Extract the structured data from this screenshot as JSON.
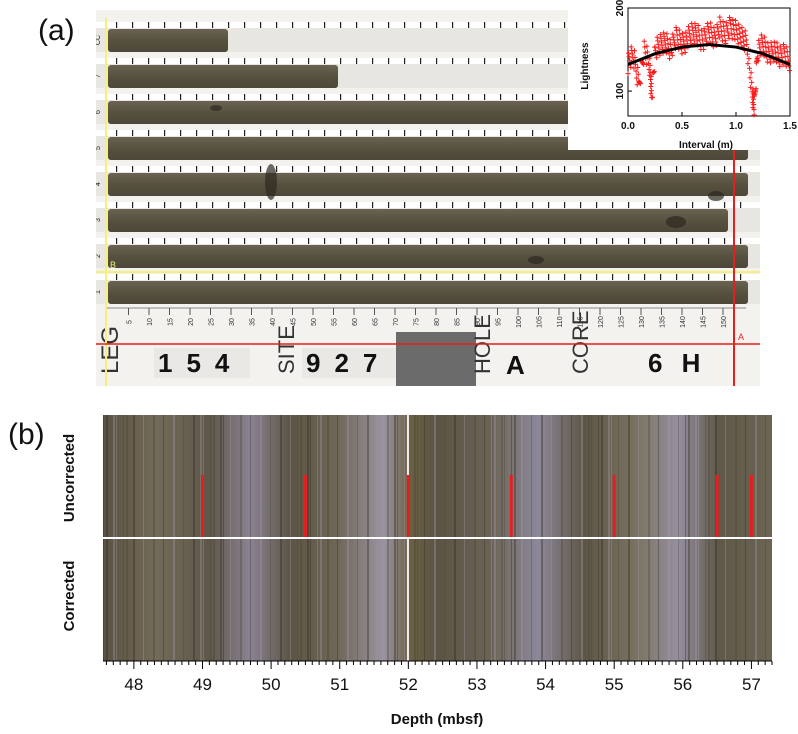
{
  "panel_a": {
    "label": "(a)",
    "photo": {
      "section_tags": [
        "CC",
        "7",
        "6",
        "5",
        "4",
        "3",
        "2",
        "1"
      ],
      "ruler_ticks": [
        "5",
        "10",
        "15",
        "20",
        "25",
        "30",
        "35",
        "40",
        "45",
        "50",
        "55",
        "60",
        "65",
        "70",
        "75",
        "80",
        "85",
        "90",
        "95",
        "100",
        "105",
        "110",
        "115",
        "120",
        "125",
        "130",
        "135",
        "140",
        "145",
        "150"
      ],
      "line_b_label": "B",
      "line_a_label": "A",
      "placard": {
        "leg_label": "LEG",
        "leg_value": "154",
        "site_label": "SITE",
        "site_value": "927",
        "hole_label": "HOLE",
        "hole_value": "A",
        "core_label": "CORE",
        "core_value": "6 H"
      },
      "colors": {
        "sediment": "#5a5446",
        "tray": "#f4f2ee",
        "yellow_line": "#f5f07a",
        "red_line": "#e81e1e",
        "gray_card": "#6b6b6b"
      }
    }
  },
  "panel_b": {
    "label": "(b)",
    "row_labels": [
      "Uncorrected",
      "Corrected"
    ],
    "red_marker_depths": [
      49.0,
      50.5,
      52.0,
      53.5,
      55.0,
      56.5,
      57.0
    ],
    "colors": {
      "strip_base": "#5f5848",
      "marker": "#e81e1e"
    }
  },
  "chart_data": [
    {
      "type": "scatter",
      "title": "",
      "xlabel": "Interval (m)",
      "ylabel": "Lightness",
      "xlim": [
        0.0,
        1.5
      ],
      "ylim": [
        70,
        200
      ],
      "x_ticks": [
        "0.0",
        "0.5",
        "1.0",
        "1.5"
      ],
      "y_ticks": [
        "100",
        "200"
      ],
      "grid": false,
      "series": [
        {
          "marker": "red plus",
          "x": [
            0.0,
            0.05,
            0.1,
            0.15,
            0.2,
            0.22,
            0.25,
            0.3,
            0.35,
            0.4,
            0.45,
            0.5,
            0.55,
            0.6,
            0.65,
            0.7,
            0.75,
            0.8,
            0.85,
            0.9,
            0.95,
            1.0,
            1.05,
            1.1,
            1.15,
            1.17,
            1.2,
            1.25,
            1.3,
            1.35,
            1.4,
            1.45,
            1.5
          ],
          "y": [
            135,
            142,
            110,
            150,
            130,
            95,
            148,
            155,
            160,
            150,
            165,
            158,
            162,
            170,
            168,
            160,
            172,
            165,
            175,
            168,
            180,
            170,
            165,
            160,
            95,
            82,
            150,
            155,
            145,
            150,
            140,
            145,
            138
          ]
        },
        {
          "type": "line",
          "color": "black",
          "x": [
            0.0,
            0.25,
            0.5,
            0.75,
            1.0,
            1.25,
            1.5
          ],
          "y": [
            132,
            145,
            153,
            156,
            153,
            145,
            132
          ]
        }
      ]
    },
    {
      "type": "image-strip",
      "xlabel": "Depth (mbsf)",
      "xlim": [
        47.55,
        57.3
      ],
      "x_ticks": [
        "48",
        "49",
        "50",
        "51",
        "52",
        "53",
        "54",
        "55",
        "56",
        "57"
      ],
      "minor_tick_step": 0.1
    }
  ]
}
